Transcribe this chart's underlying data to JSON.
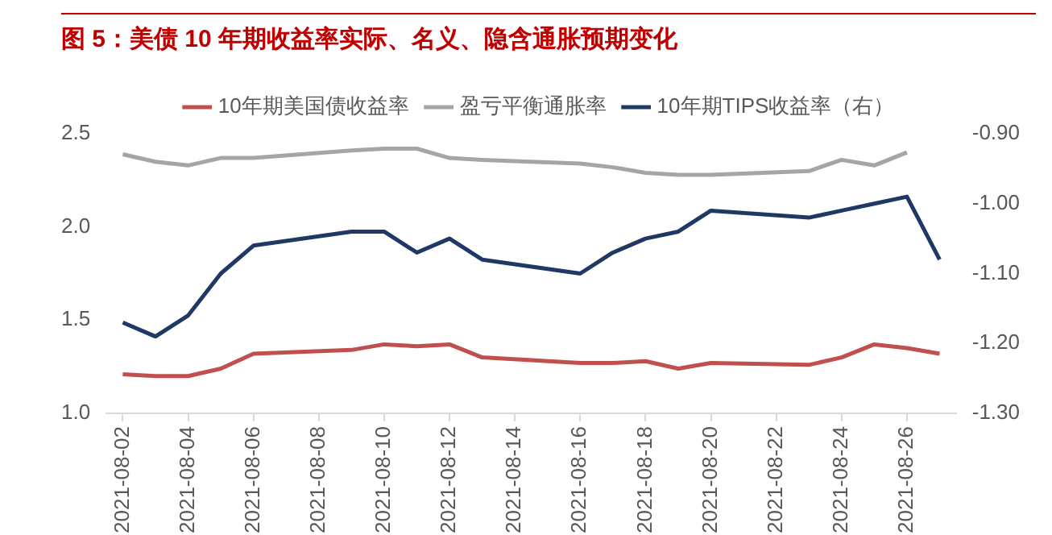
{
  "chart_data": {
    "type": "line",
    "title": "图 5：美债 10 年期收益率实际、名义、隐含通胀预期变化",
    "legend": "top",
    "x": [
      "2021-08-02",
      "2021-08-03",
      "2021-08-04",
      "2021-08-05",
      "2021-08-06",
      "2021-08-09",
      "2021-08-10",
      "2021-08-11",
      "2021-08-12",
      "2021-08-13",
      "2021-08-16",
      "2021-08-17",
      "2021-08-18",
      "2021-08-19",
      "2021-08-20",
      "2021-08-23",
      "2021-08-24",
      "2021-08-25",
      "2021-08-26",
      "2021-08-27"
    ],
    "series": [
      {
        "name": "10年期美国债收益率",
        "color": "#c0504d",
        "values": [
          1.21,
          1.2,
          1.2,
          1.24,
          1.32,
          1.34,
          1.37,
          1.36,
          1.37,
          1.3,
          1.27,
          1.27,
          1.28,
          1.24,
          1.27,
          1.26,
          1.3,
          1.37,
          1.35,
          1.32
        ]
      },
      {
        "name": "盈亏平衡通胀率",
        "color": "#a5a5a5",
        "values": [
          2.39,
          2.35,
          2.33,
          2.37,
          2.37,
          2.41,
          2.42,
          2.42,
          2.37,
          2.36,
          2.34,
          2.32,
          2.29,
          2.28,
          2.28,
          2.3,
          2.36,
          2.33,
          2.4,
          null
        ]
      },
      {
        "name": "10年期TIPS收益率（右）",
        "color": "#203864",
        "axis": "y2",
        "values": [
          -1.17,
          -1.19,
          -1.16,
          -1.1,
          -1.06,
          -1.04,
          -1.04,
          -1.07,
          -1.05,
          -1.08,
          -1.1,
          -1.07,
          -1.05,
          -1.04,
          -1.01,
          -1.02,
          -1.01,
          -1.0,
          -0.99,
          -1.08
        ]
      }
    ],
    "xlim": [
      "2021-08-01T12:00",
      "2021-08-27T12:00"
    ],
    "xticks": [
      "2021-08-02",
      "2021-08-04",
      "2021-08-06",
      "2021-08-08",
      "2021-08-10",
      "2021-08-12",
      "2021-08-14",
      "2021-08-16",
      "2021-08-18",
      "2021-08-20",
      "2021-08-22",
      "2021-08-24",
      "2021-08-26"
    ],
    "ylim": [
      1.0,
      2.5
    ],
    "yticks": [
      {
        "value": 1,
        "label": "1.0"
      },
      {
        "value": 1.5,
        "label": "1.5"
      },
      {
        "value": 2,
        "label": "2.0"
      },
      {
        "value": 2.5,
        "label": "2.5"
      }
    ],
    "y2lim": [
      -1.3,
      -0.9
    ],
    "y2ticks": [
      {
        "value": -1.3,
        "label": "-1.30"
      },
      {
        "value": -1.2,
        "label": "-1.20"
      },
      {
        "value": -1.1,
        "label": "-1.10"
      },
      {
        "value": -1.0,
        "label": "-1.00"
      },
      {
        "value": -0.9,
        "label": "-0.90"
      }
    ]
  }
}
